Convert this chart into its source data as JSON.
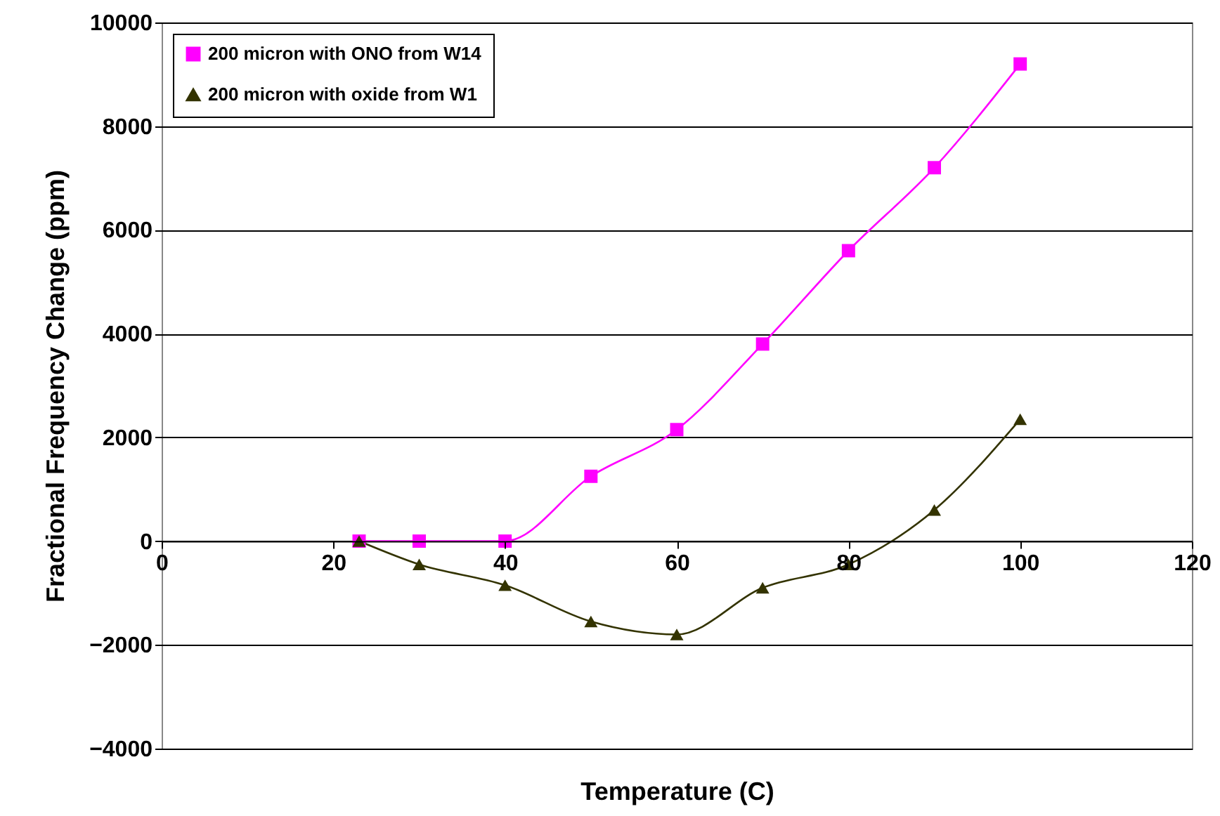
{
  "chart_data": {
    "type": "line",
    "xlabel": "Temperature (C)",
    "ylabel": "Fractional Frequency Change (ppm)",
    "xlim": [
      0,
      120
    ],
    "xticks": [
      0,
      20,
      40,
      60,
      80,
      100,
      120
    ],
    "ylim": [
      -4000,
      10000
    ],
    "yticks": [
      -4000,
      -2000,
      0,
      2000,
      4000,
      6000,
      8000,
      10000
    ],
    "grid": "y",
    "legend": "top left",
    "series": [
      {
        "name": "200 micron with ONO from W14",
        "color": "#ff00ff",
        "marker": "square",
        "x": [
          23,
          30,
          40,
          50,
          60,
          70,
          80,
          90,
          100
        ],
        "values": [
          0,
          0,
          0,
          1250,
          2150,
          3800,
          5600,
          7200,
          9200
        ]
      },
      {
        "name": "200 micron with oxide from W1",
        "color": "#333300",
        "marker": "triangle",
        "x": [
          23,
          30,
          40,
          50,
          60,
          70,
          80,
          90,
          100
        ],
        "values": [
          0,
          -450,
          -850,
          -1550,
          -1800,
          -900,
          -450,
          600,
          2350
        ]
      }
    ]
  }
}
